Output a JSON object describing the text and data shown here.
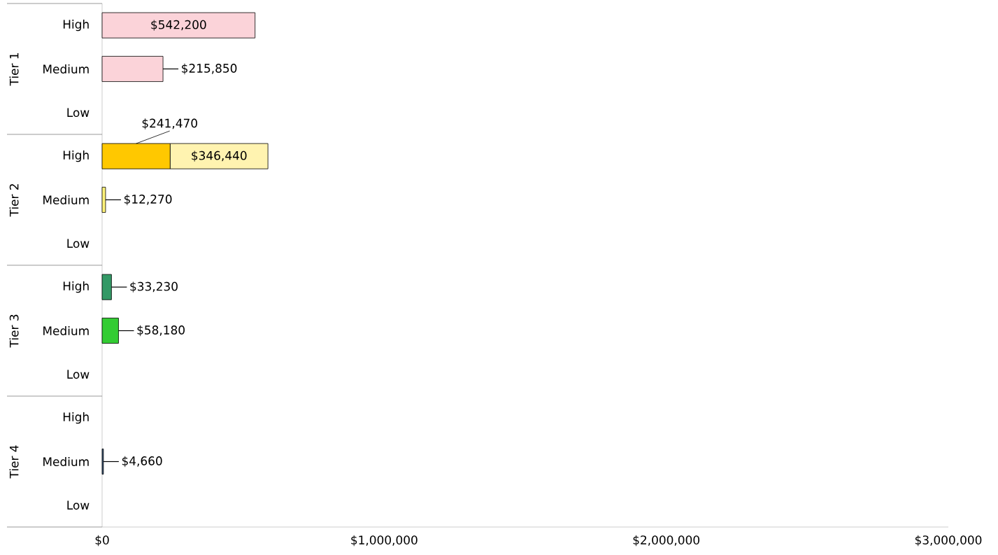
{
  "chart_data": {
    "type": "bar",
    "orientation": "horizontal",
    "stacked": true,
    "categories": [
      "High",
      "Medium",
      "Low",
      "High",
      "Medium",
      "Low",
      "High",
      "Medium",
      "Low",
      "High",
      "Medium",
      "Low"
    ],
    "series": [
      {
        "colors": [
          "#fbd3d9",
          "#fbd3d9",
          null,
          "#ffc800",
          "#fff27a",
          null,
          "#339966",
          "#33cc33",
          null,
          null,
          "#3a5a80",
          null
        ],
        "values": [
          542200,
          215850,
          null,
          241470,
          12270,
          null,
          33230,
          58180,
          null,
          null,
          4660,
          null
        ],
        "value_labels": [
          "$542,200",
          "$215,850",
          null,
          "$241,470",
          "$12,270",
          null,
          "$33,230",
          "$58,180",
          null,
          null,
          "$4,660",
          null
        ]
      },
      {
        "colors": [
          null,
          null,
          null,
          "#fff3b0",
          null,
          null,
          null,
          null,
          null,
          null,
          null,
          null
        ],
        "values": [
          null,
          null,
          null,
          346440,
          null,
          null,
          null,
          null,
          null,
          null,
          null,
          null
        ],
        "value_labels": [
          null,
          null,
          null,
          "$346,440",
          null,
          null,
          null,
          null,
          null,
          null,
          null,
          null
        ]
      }
    ],
    "xlim": [
      0,
      3000000
    ],
    "xticks": [
      {
        "value": 0,
        "label": "$0"
      },
      {
        "value": 1000000,
        "label": "$1,000,000"
      },
      {
        "value": 2000000,
        "label": "$2,000,000"
      },
      {
        "value": 3000000,
        "label": "$3,000,000"
      }
    ],
    "annotations": [
      "Tier 1",
      "Tier 2",
      "Tier 3",
      "Tier 4"
    ],
    "grid": false
  }
}
